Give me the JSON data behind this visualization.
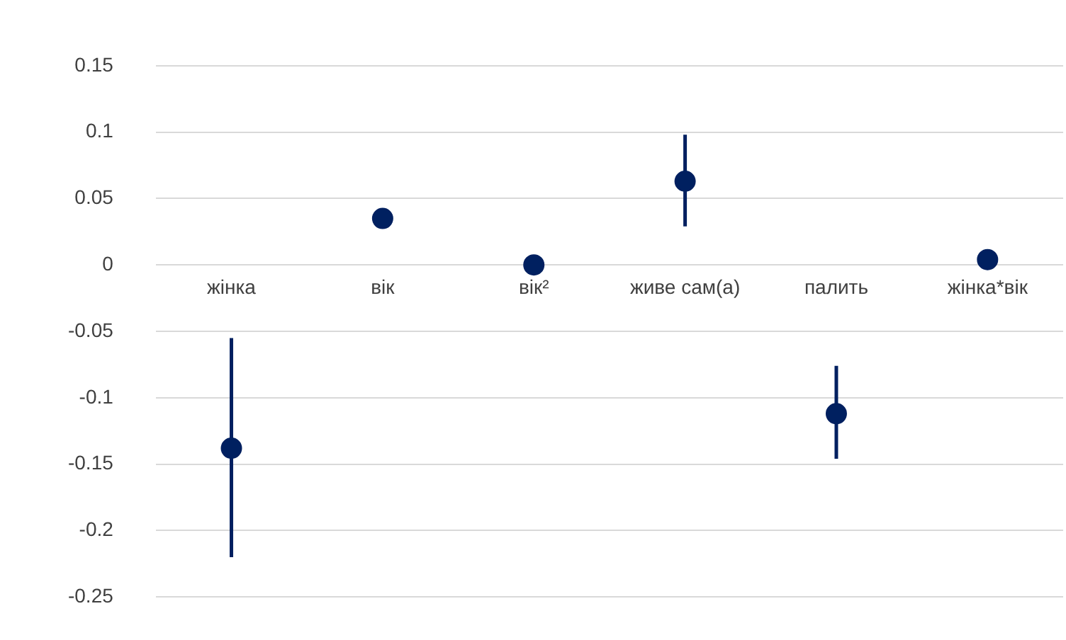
{
  "chart_data": {
    "type": "scatter",
    "categories": [
      "жінка",
      "вік",
      "вік²",
      "живе сам(а)",
      "палить",
      "жінка*вік"
    ],
    "series": [
      {
        "color": "#002060",
        "values": [
          -0.138,
          0.035,
          0,
          0.063,
          -0.112,
          0.004
        ],
        "errors": [
          [
            -0.22,
            -0.055
          ],
          null,
          null,
          [
            0.029,
            0.098
          ],
          [
            -0.146,
            -0.076
          ],
          null
        ]
      }
    ],
    "ylim": [
      -0.25,
      0.15
    ],
    "yticks": [
      -0.25,
      -0.2,
      -0.15,
      -0.1,
      -0.05,
      0,
      0.05,
      0.1,
      0.15
    ],
    "grid": "y",
    "legend": false,
    "marker": "circle"
  }
}
